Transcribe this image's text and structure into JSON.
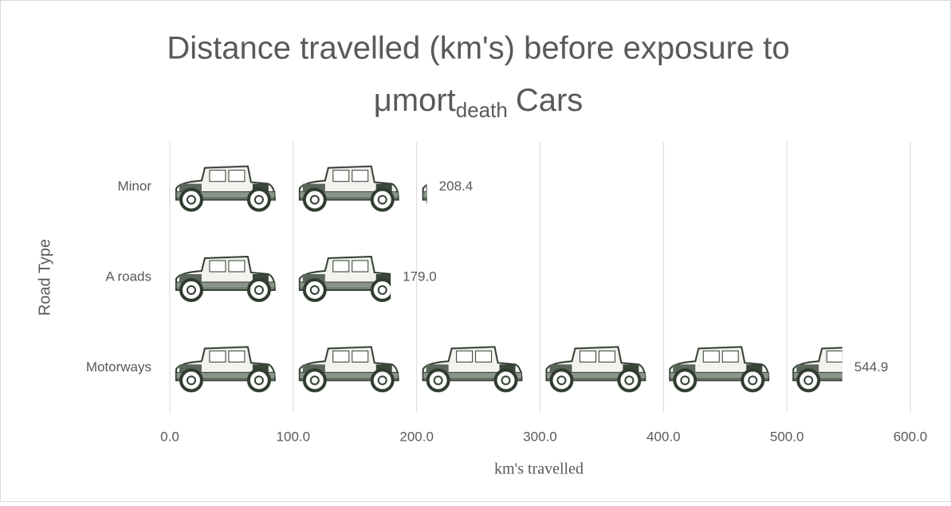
{
  "chart_data": {
    "type": "pictograph-bar",
    "title": [
      "Distance travelled (km's) before exposure to",
      "μmort",
      "death",
      "Cars"
    ],
    "x_label": "km's travelled",
    "y_label": "Road Type",
    "categories": [
      "Motorways",
      "A roads",
      "Minor"
    ],
    "values": [
      544.9,
      179.0,
      208.4
    ],
    "value_labels": [
      "544.9",
      "179.0",
      "208.4"
    ],
    "color": "#2f3b2f",
    "xlim": [
      0,
      600
    ],
    "xticks": [
      {
        "value": 0,
        "label": "0.0"
      },
      {
        "value": 100,
        "label": "100.0"
      },
      {
        "value": 200,
        "label": "200.0"
      },
      {
        "value": 300,
        "label": "300.0"
      },
      {
        "value": 400,
        "label": "400.0"
      },
      {
        "value": 500,
        "label": "500.0"
      },
      {
        "value": 600,
        "label": "600.0"
      }
    ],
    "grid": true
  }
}
